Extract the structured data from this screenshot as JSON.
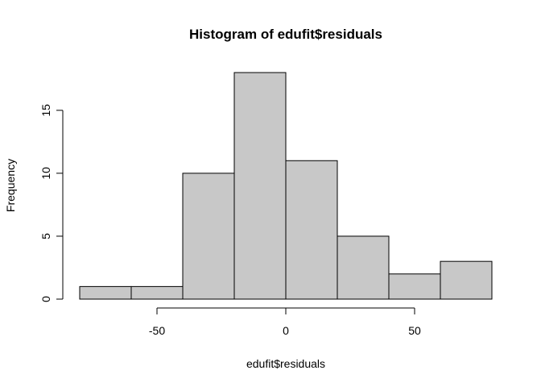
{
  "chart_data": {
    "type": "bar",
    "title": "Histogram of edufit$residuals",
    "xlabel": "edufit$residuals",
    "ylabel": "Frequency",
    "bins": [
      {
        "from": -80,
        "to": -60,
        "count": 1
      },
      {
        "from": -60,
        "to": -40,
        "count": 1
      },
      {
        "from": -40,
        "to": -20,
        "count": 10
      },
      {
        "from": -20,
        "to": 0,
        "count": 18
      },
      {
        "from": 0,
        "to": 20,
        "count": 11
      },
      {
        "from": 20,
        "to": 40,
        "count": 5
      },
      {
        "from": 40,
        "to": 60,
        "count": 2
      },
      {
        "from": 60,
        "to": 80,
        "count": 3
      }
    ],
    "xlim": [
      -80,
      80
    ],
    "ylim": [
      0,
      18
    ],
    "xticks": [
      -50,
      0,
      50
    ],
    "yticks": [
      0,
      5,
      10,
      15
    ],
    "grid": false,
    "legend": "none",
    "bar_fill": "#c8c8c8",
    "bar_stroke": "#000000"
  }
}
